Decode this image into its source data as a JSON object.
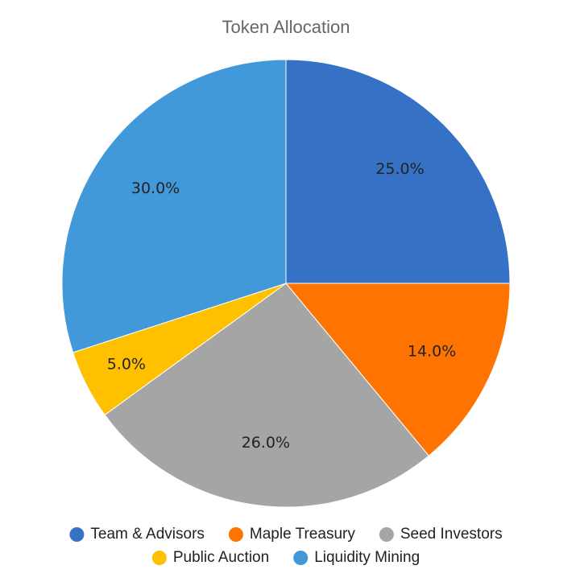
{
  "chart_data": {
    "type": "pie",
    "title": "Token Allocation",
    "categories": [
      "Team & Advisors",
      "Maple Treasury",
      "Seed Investors",
      "Public Auction",
      "Liquidity Mining"
    ],
    "values": [
      25,
      14,
      26,
      5,
      30
    ],
    "value_labels": [
      "25.0%",
      "14.0%",
      "26.0%",
      "5.0%",
      "30.0%"
    ],
    "colors": [
      "#3572c6",
      "#ff7300",
      "#a5a5a5",
      "#ffc000",
      "#4299d9"
    ]
  }
}
